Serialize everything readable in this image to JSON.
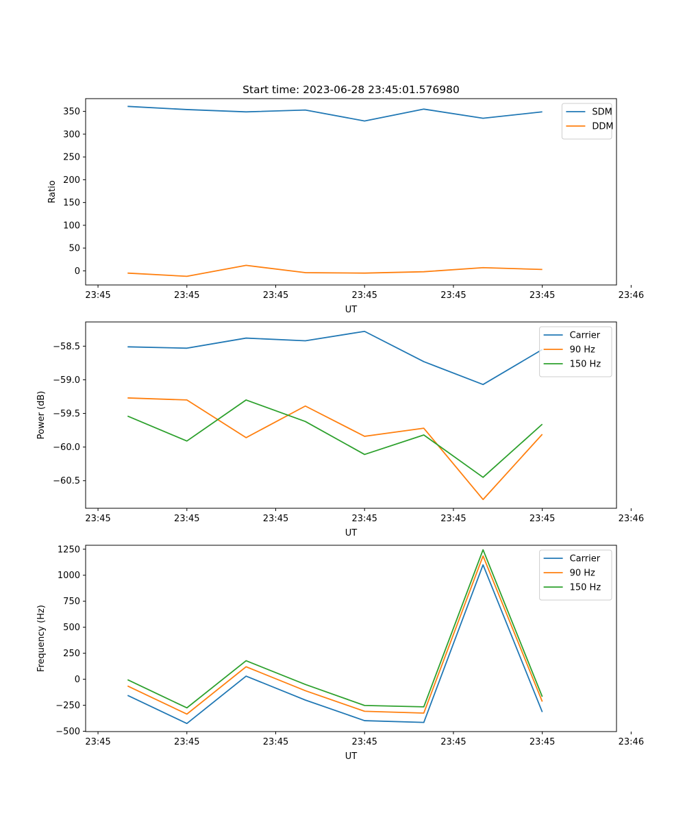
{
  "figure_title": "Start time: 2023-06-28 23:45:01.576980",
  "chart_data": [
    {
      "type": "line",
      "title": "Start time: 2023-06-28 23:45:01.576980",
      "xlabel": "UT",
      "ylabel": "Ratio",
      "x": [
        1,
        2,
        3,
        4,
        5,
        6,
        7,
        8
      ],
      "xlim": [
        0.291,
        9.253
      ],
      "xticks": [
        0.5,
        2,
        3.5,
        5,
        6.5,
        8,
        9.5
      ],
      "xticklabels": [
        "23:45",
        "23:45",
        "23:45",
        "23:45",
        "23:45",
        "23:45",
        "23:46"
      ],
      "ylim": [
        -31,
        378
      ],
      "yticks": [
        0,
        50,
        100,
        150,
        200,
        250,
        300,
        350
      ],
      "yticklabels": [
        "0",
        "50",
        "100",
        "150",
        "200",
        "250",
        "300",
        "350"
      ],
      "legend_position": "top-right",
      "grid": false,
      "series": [
        {
          "name": "SDM",
          "color": "#1f77b4",
          "values": [
            361,
            354,
            349,
            353,
            329,
            355,
            335,
            349
          ]
        },
        {
          "name": "DDM",
          "color": "#ff7f0e",
          "values": [
            -5,
            -12,
            12,
            -4,
            -5,
            -2,
            7,
            3
          ]
        }
      ]
    },
    {
      "type": "line",
      "title": "",
      "xlabel": "UT",
      "ylabel": "Power (dB)",
      "x": [
        1,
        2,
        3,
        4,
        5,
        6,
        7,
        8
      ],
      "xlim": [
        0.291,
        9.253
      ],
      "xticks": [
        0.5,
        2,
        3.5,
        5,
        6.5,
        8,
        9.5
      ],
      "xticklabels": [
        "23:45",
        "23:45",
        "23:45",
        "23:45",
        "23:45",
        "23:45",
        "23:46"
      ],
      "ylim": [
        -60.91,
        -58.14
      ],
      "yticks": [
        -58.5,
        -59.0,
        -59.5,
        -60.0,
        -60.5
      ],
      "yticklabels": [
        "−58.5",
        "−59.0",
        "−59.5",
        "−60.0",
        "−60.5"
      ],
      "legend_position": "top-right",
      "grid": false,
      "series": [
        {
          "name": "Carrier",
          "color": "#1f77b4",
          "values": [
            -58.51,
            -58.53,
            -58.38,
            -58.42,
            -58.28,
            -58.73,
            -59.07,
            -58.55
          ]
        },
        {
          "name": "90 Hz",
          "color": "#ff7f0e",
          "values": [
            -59.27,
            -59.3,
            -59.86,
            -59.39,
            -59.84,
            -59.72,
            -60.78,
            -59.81
          ]
        },
        {
          "name": "150 Hz",
          "color": "#2ca02c",
          "values": [
            -59.54,
            -59.91,
            -59.3,
            -59.62,
            -60.11,
            -59.82,
            -60.45,
            -59.66
          ]
        }
      ]
    },
    {
      "type": "line",
      "title": "",
      "xlabel": "UT",
      "ylabel": "Frequency (Hz)",
      "x": [
        1,
        2,
        3,
        4,
        5,
        6,
        7,
        8
      ],
      "xlim": [
        0.291,
        9.253
      ],
      "xticks": [
        0.5,
        2,
        3.5,
        5,
        6.5,
        8,
        9.5
      ],
      "xticklabels": [
        "23:45",
        "23:45",
        "23:45",
        "23:45",
        "23:45",
        "23:45",
        "23:46"
      ],
      "ylim": [
        -503,
        1288
      ],
      "yticks": [
        -500,
        -250,
        0,
        250,
        500,
        750,
        1000,
        1250
      ],
      "yticklabels": [
        "−500",
        "−250",
        "0",
        "250",
        "500",
        "750",
        "1000",
        "1250"
      ],
      "legend_position": "top-right",
      "grid": false,
      "series": [
        {
          "name": "Carrier",
          "color": "#1f77b4",
          "values": [
            -155,
            -425,
            30,
            -200,
            -398,
            -415,
            1100,
            -315
          ]
        },
        {
          "name": "90 Hz",
          "color": "#ff7f0e",
          "values": [
            -65,
            -335,
            120,
            -110,
            -308,
            -325,
            1185,
            -215
          ]
        },
        {
          "name": "150 Hz",
          "color": "#2ca02c",
          "values": [
            -5,
            -275,
            178,
            -50,
            -252,
            -265,
            1245,
            -168
          ]
        }
      ]
    }
  ]
}
